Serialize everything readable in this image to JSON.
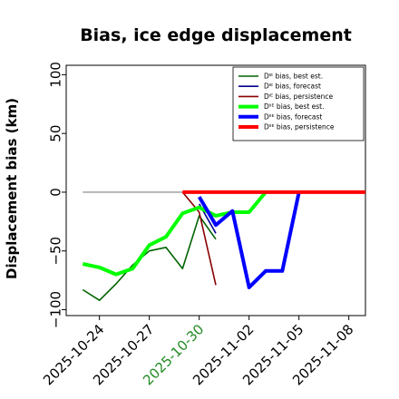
{
  "chart_data": {
    "type": "line",
    "title": "Bias, ice edge displacement",
    "ylabel": "Displacement bias (km)",
    "xlabel": "",
    "ylim": [
      -105,
      108
    ],
    "xlim": [
      "2025-10-22",
      "2025-11-09"
    ],
    "yticks": [
      100,
      50,
      0,
      -50,
      -100
    ],
    "yticklabels": [
      "100",
      "50",
      "0",
      "−50",
      "−100"
    ],
    "xticks": [
      "2025-10-24",
      "2025-10-27",
      "2025-10-30",
      "2025-11-02",
      "2025-11-05",
      "2025-11-08"
    ],
    "xticklabels": [
      "2025-10-24",
      "2025-10-27",
      "2025-10-30",
      "2025-11-02",
      "2025-11-05",
      "2025-11-08"
    ],
    "highlighted_xtick": "2025-10-30",
    "highlight_color": "#228b22",
    "grid": false,
    "legend_position": "top-right",
    "zero_line": {
      "y": 0,
      "x_start": "2025-10-23",
      "x_end": "2025-11-09",
      "color": "#808080"
    },
    "series": [
      {
        "name": "Dᴵᴱ bias, best est.",
        "color": "#006400",
        "width": "thin",
        "points": [
          [
            "2025-10-23",
            -83
          ],
          [
            "2025-10-24",
            -92
          ],
          [
            "2025-10-25",
            -78
          ],
          [
            "2025-10-26",
            -62
          ],
          [
            "2025-10-27",
            -50
          ],
          [
            "2025-10-28",
            -47
          ],
          [
            "2025-10-29",
            -65
          ],
          [
            "2025-10-30",
            -20
          ],
          [
            "2025-10-31",
            -40
          ]
        ]
      },
      {
        "name": "Dᴵᴱ bias, forecast",
        "color": "#00008b",
        "width": "thin",
        "points": [
          [
            "2025-10-30",
            -10
          ],
          [
            "2025-10-31",
            -35
          ]
        ]
      },
      {
        "name": "Dᴵᴱ bias, persistence",
        "color": "#8b0000",
        "width": "thin",
        "points": [
          [
            "2025-10-29",
            0
          ],
          [
            "2025-10-30",
            -17
          ],
          [
            "2025-10-31",
            -79
          ]
        ]
      },
      {
        "name": "Dᴵᴵᴱ bias, best est.",
        "color": "#00ff00",
        "width": "thick",
        "points": [
          [
            "2025-10-23",
            -61
          ],
          [
            "2025-10-24",
            -64
          ],
          [
            "2025-10-25",
            -70
          ],
          [
            "2025-10-26",
            -65
          ],
          [
            "2025-10-27",
            -45
          ],
          [
            "2025-10-28",
            -38
          ],
          [
            "2025-10-29",
            -18
          ],
          [
            "2025-10-30",
            -13
          ],
          [
            "2025-10-31",
            -20
          ],
          [
            "2025-11-01",
            -17
          ],
          [
            "2025-11-02",
            -17
          ],
          [
            "2025-11-03",
            0
          ]
        ]
      },
      {
        "name": "Dᴵᴵᴱ bias, forecast",
        "color": "#0000ff",
        "width": "thick",
        "points": [
          [
            "2025-10-30",
            -4
          ],
          [
            "2025-10-31",
            -28
          ],
          [
            "2025-11-01",
            -16
          ],
          [
            "2025-11-02",
            -81
          ],
          [
            "2025-11-03",
            -67
          ],
          [
            "2025-11-04",
            -67
          ],
          [
            "2025-11-05",
            0
          ]
        ]
      },
      {
        "name": "Dᴵᴵᴱ bias, persistence",
        "color": "#ff0000",
        "width": "thick",
        "points": [
          [
            "2025-10-29",
            0
          ],
          [
            "2025-11-09",
            0
          ]
        ]
      }
    ]
  }
}
